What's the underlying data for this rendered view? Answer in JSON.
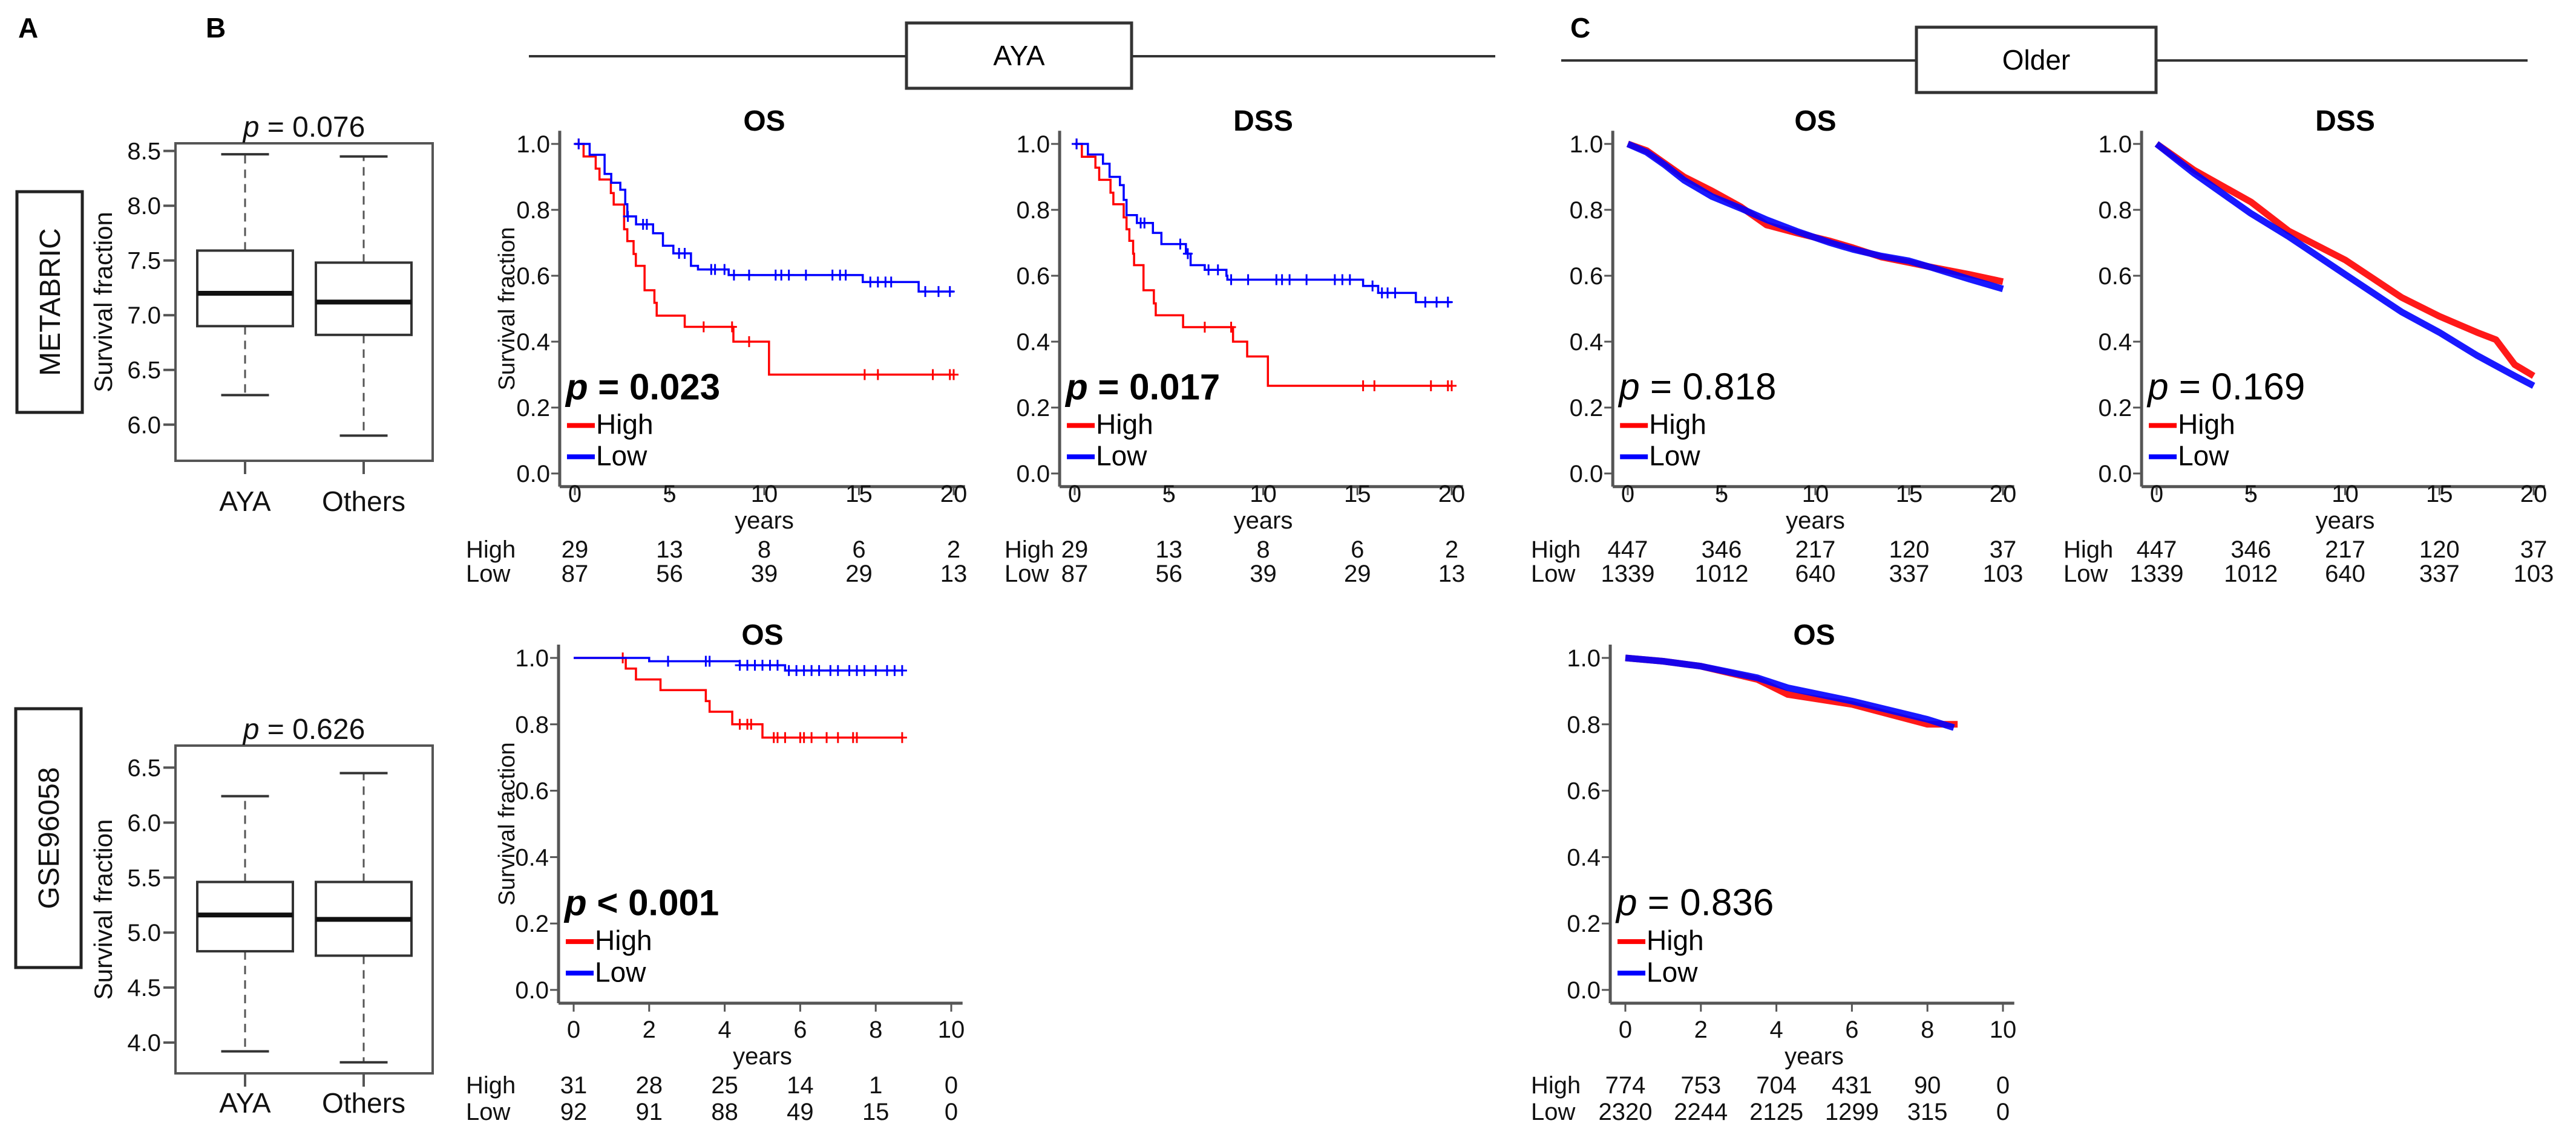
{
  "panel_labels": {
    "a": "A",
    "b": "B",
    "c": "C"
  },
  "groups": {
    "aya": "AYA",
    "older": "Older"
  },
  "colors": {
    "high": "#ff0000",
    "low": "#0000ff",
    "axis": "#555555",
    "box": "#333333"
  },
  "chart_data": [
    {
      "type": "boxplot",
      "dataset": "METABRIC",
      "ylabel": "Survival fraction",
      "p_symbol": "p",
      "p_rest": " = 0.076",
      "ylim": [
        5.67,
        8.57
      ],
      "yticks": [
        "6.0",
        "6.5",
        "7.0",
        "7.5",
        "8.0",
        "8.5"
      ],
      "categories": [
        "AYA",
        "Others"
      ],
      "boxes": [
        {
          "whisker_low": 6.27,
          "q1": 6.9,
          "median": 7.2,
          "q3": 7.59,
          "whisker_high": 8.47
        },
        {
          "whisker_low": 5.9,
          "q1": 6.82,
          "median": 7.12,
          "q3": 7.48,
          "whisker_high": 8.45
        }
      ]
    },
    {
      "type": "boxplot",
      "dataset": "GSE96058",
      "ylabel": "Survival fraction",
      "p_symbol": "p",
      "p_rest": " = 0.626",
      "ylim": [
        3.72,
        6.7
      ],
      "yticks": [
        "4.0",
        "4.5",
        "5.0",
        "5.5",
        "6.0",
        "6.5"
      ],
      "categories": [
        "AYA",
        "Others"
      ],
      "boxes": [
        {
          "whisker_low": 3.92,
          "q1": 4.83,
          "median": 5.16,
          "q3": 5.46,
          "whisker_high": 6.24
        },
        {
          "whisker_low": 3.82,
          "q1": 4.79,
          "median": 5.12,
          "q3": 5.46,
          "whisker_high": 6.45
        }
      ]
    },
    {
      "type": "line",
      "group": "AYA",
      "title": "OS",
      "ylabel": "Survival fraction",
      "xlabel": "years",
      "xlim": [
        0,
        20
      ],
      "xticks": [
        "0",
        "5",
        "10",
        "15",
        "20"
      ],
      "ylim": [
        0,
        1
      ],
      "yticks": [
        "0.0",
        "0.2",
        "0.4",
        "0.6",
        "0.8",
        "1.0"
      ],
      "p_symbol": "p",
      "p_rest": " = 0.023",
      "p_bold": true,
      "series": [
        {
          "name": "High",
          "end": 20,
          "steps": [
            [
              0.46,
              0.962
            ],
            [
              1.1,
              0.925
            ],
            [
              1.3,
              0.892
            ],
            [
              1.9,
              0.851
            ],
            [
              2.05,
              0.816
            ],
            [
              2.6,
              0.741
            ],
            [
              2.77,
              0.705
            ],
            [
              3.1,
              0.666
            ],
            [
              3.22,
              0.63
            ],
            [
              3.68,
              0.556
            ],
            [
              4.2,
              0.518
            ],
            [
              4.32,
              0.479
            ],
            [
              5.8,
              0.445
            ],
            [
              8.37,
              0.4
            ],
            [
              10.25,
              0.3
            ]
          ],
          "censor": [
            0.2,
            6.8,
            8.3,
            9.2,
            15.3,
            16,
            18.9,
            19.8,
            20
          ]
        },
        {
          "name": "Low",
          "end": 20,
          "steps": [
            [
              0.78,
              0.967
            ],
            [
              1.57,
              0.909
            ],
            [
              1.92,
              0.882
            ],
            [
              2.4,
              0.861
            ],
            [
              2.66,
              0.817
            ],
            [
              2.77,
              0.78
            ],
            [
              3.23,
              0.756
            ],
            [
              4.13,
              0.729
            ],
            [
              4.65,
              0.691
            ],
            [
              5.2,
              0.668
            ],
            [
              6.13,
              0.63
            ],
            [
              6.5,
              0.619
            ],
            [
              8.12,
              0.602
            ],
            [
              15.2,
              0.581
            ],
            [
              18.15,
              0.552
            ]
          ],
          "censor": [
            0.2,
            2.8,
            3.6,
            3.8,
            5.5,
            5.8,
            7.2,
            7.4,
            7.9,
            8.4,
            9.2,
            10.6,
            10.9,
            11.3,
            12.2,
            13.6,
            14.0,
            14.3,
            15.6,
            16.0,
            16.4,
            16.7,
            18.5,
            19.2,
            19.8
          ]
        }
      ],
      "risk_table": [
        {
          "label": "High",
          "values": [
            "29",
            "13",
            "8",
            "6",
            "2"
          ]
        },
        {
          "label": "Low",
          "values": [
            "87",
            "56",
            "39",
            "29",
            "13"
          ]
        }
      ]
    },
    {
      "type": "line",
      "group": "AYA",
      "title": "DSS",
      "ylabel": "",
      "xlabel": "years",
      "xlim": [
        0,
        20
      ],
      "xticks": [
        "0",
        "5",
        "10",
        "15",
        "20"
      ],
      "ylim": [
        0,
        1
      ],
      "yticks": [
        "0.0",
        "0.2",
        "0.4",
        "0.6",
        "0.8",
        "1.0"
      ],
      "p_symbol": "p",
      "p_rest": " = 0.017",
      "p_bold": true,
      "series": [
        {
          "name": "High",
          "end": 20,
          "steps": [
            [
              0.38,
              0.961
            ],
            [
              1.1,
              0.928
            ],
            [
              1.3,
              0.891
            ],
            [
              1.9,
              0.852
            ],
            [
              2.05,
              0.817
            ],
            [
              2.6,
              0.777
            ],
            [
              2.75,
              0.741
            ],
            [
              2.9,
              0.706
            ],
            [
              3.1,
              0.667
            ],
            [
              3.15,
              0.632
            ],
            [
              3.65,
              0.556
            ],
            [
              4.2,
              0.516
            ],
            [
              4.3,
              0.48
            ],
            [
              5.75,
              0.444
            ],
            [
              8.4,
              0.4
            ],
            [
              9.15,
              0.355
            ],
            [
              10.25,
              0.266
            ]
          ],
          "censor": [
            0.1,
            6.9,
            8.3,
            15.3,
            15.9,
            18.9,
            19.8,
            20
          ]
        },
        {
          "name": "Low",
          "end": 20,
          "steps": [
            [
              0.7,
              0.968
            ],
            [
              1.5,
              0.94
            ],
            [
              1.85,
              0.9
            ],
            [
              2.4,
              0.875
            ],
            [
              2.6,
              0.83
            ],
            [
              2.75,
              0.784
            ],
            [
              3.3,
              0.76
            ],
            [
              4.15,
              0.73
            ],
            [
              4.6,
              0.696
            ],
            [
              5.9,
              0.667
            ],
            [
              6.15,
              0.632
            ],
            [
              6.9,
              0.618
            ],
            [
              8.05,
              0.6
            ],
            [
              8.1,
              0.588
            ],
            [
              15.3,
              0.569
            ],
            [
              16.1,
              0.548
            ],
            [
              18.1,
              0.52
            ]
          ],
          "censor": [
            0.1,
            3.5,
            3.7,
            5.6,
            6.0,
            7.1,
            7.6,
            8.3,
            9.2,
            10.7,
            11.0,
            11.4,
            12.3,
            13.8,
            14.2,
            14.6,
            15.8,
            16.3,
            16.6,
            17.0,
            18.6,
            19.2,
            19.8
          ]
        }
      ],
      "risk_table": [
        {
          "label": "High",
          "values": [
            "29",
            "13",
            "8",
            "6",
            "2"
          ]
        },
        {
          "label": "Low",
          "values": [
            "87",
            "56",
            "39",
            "29",
            "13"
          ]
        }
      ]
    },
    {
      "type": "line",
      "group": "Older",
      "title": "OS",
      "ylabel": "",
      "xlabel": "years",
      "xlim": [
        0,
        20
      ],
      "xticks": [
        "0",
        "5",
        "10",
        "15",
        "20"
      ],
      "ylim": [
        0,
        1
      ],
      "yticks": [
        "0.0",
        "0.2",
        "0.4",
        "0.6",
        "0.8",
        "1.0"
      ],
      "p_symbol": "p",
      "p_rest": " = 0.818",
      "p_bold": false,
      "series": [
        {
          "name": "High",
          "points": [
            [
              0,
              1
            ],
            [
              1,
              0.98
            ],
            [
              2,
              0.94
            ],
            [
              3,
              0.9
            ],
            [
              4.5,
              0.857
            ],
            [
              6,
              0.81
            ],
            [
              7.4,
              0.754
            ],
            [
              9,
              0.73
            ],
            [
              10.8,
              0.705
            ],
            [
              12,
              0.685
            ],
            [
              13.5,
              0.657
            ],
            [
              15,
              0.64
            ],
            [
              16.2,
              0.626
            ],
            [
              18.2,
              0.604
            ],
            [
              20,
              0.582
            ]
          ]
        },
        {
          "name": "Low",
          "points": [
            [
              0,
              1
            ],
            [
              1,
              0.975
            ],
            [
              2,
              0.935
            ],
            [
              3,
              0.89
            ],
            [
              4.5,
              0.84
            ],
            [
              6,
              0.805
            ],
            [
              7.4,
              0.77
            ],
            [
              9,
              0.735
            ],
            [
              10.8,
              0.7
            ],
            [
              12,
              0.68
            ],
            [
              13.5,
              0.66
            ],
            [
              15,
              0.645
            ],
            [
              16.2,
              0.625
            ],
            [
              18.2,
              0.59
            ],
            [
              20,
              0.56
            ]
          ]
        }
      ],
      "risk_table": [
        {
          "label": "High",
          "values": [
            "447",
            "346",
            "217",
            "120",
            "37"
          ]
        },
        {
          "label": "Low",
          "values": [
            "1339",
            "1012",
            "640",
            "337",
            "103"
          ]
        }
      ]
    },
    {
      "type": "line",
      "group": "Older",
      "title": "DSS",
      "ylabel": "",
      "xlabel": "years",
      "xlim": [
        0,
        20
      ],
      "xticks": [
        "0",
        "5",
        "10",
        "15",
        "20"
      ],
      "ylim": [
        0,
        1
      ],
      "yticks": [
        "0.0",
        "0.2",
        "0.4",
        "0.6",
        "0.8",
        "1.0"
      ],
      "p_symbol": "p",
      "p_rest": " = 0.169",
      "p_bold": false,
      "series": [
        {
          "name": "High",
          "points": [
            [
              0,
              1
            ],
            [
              2,
              0.92
            ],
            [
              5,
              0.824
            ],
            [
              7,
              0.736
            ],
            [
              10,
              0.648
            ],
            [
              13,
              0.534
            ],
            [
              15,
              0.477
            ],
            [
              17,
              0.428
            ],
            [
              18,
              0.406
            ],
            [
              19,
              0.33
            ],
            [
              20,
              0.296
            ]
          ]
        },
        {
          "name": "Low",
          "points": [
            [
              0,
              1
            ],
            [
              2,
              0.91
            ],
            [
              5,
              0.789
            ],
            [
              7,
              0.719
            ],
            [
              10,
              0.604
            ],
            [
              13,
              0.49
            ],
            [
              15,
              0.428
            ],
            [
              17,
              0.358
            ],
            [
              19,
              0.296
            ],
            [
              20,
              0.266
            ]
          ]
        }
      ],
      "risk_table": [
        {
          "label": "High",
          "values": [
            "447",
            "346",
            "217",
            "120",
            "37"
          ]
        },
        {
          "label": "Low",
          "values": [
            "1339",
            "1012",
            "640",
            "337",
            "103"
          ]
        }
      ]
    },
    {
      "type": "line",
      "group": "AYA",
      "title": "OS",
      "ylabel": "Survival fraction",
      "xlabel": "years",
      "xlim": [
        0,
        10
      ],
      "xticks": [
        "0",
        "2",
        "4",
        "6",
        "8",
        "10"
      ],
      "ylim": [
        0,
        1
      ],
      "yticks": [
        "0.0",
        "0.2",
        "0.4",
        "0.6",
        "0.8",
        "1.0"
      ],
      "p_symbol": "p",
      "p_rest": " < 0.001",
      "p_bold": true,
      "series": [
        {
          "name": "High",
          "end": 8.7,
          "steps": [
            [
              1.38,
              0.968
            ],
            [
              1.65,
              0.935
            ],
            [
              2.3,
              0.903
            ],
            [
              3.5,
              0.87
            ],
            [
              3.6,
              0.838
            ],
            [
              4.2,
              0.8
            ],
            [
              5.0,
              0.76
            ]
          ],
          "censor": [
            1.3,
            4.4,
            4.6,
            4.7,
            5.3,
            5.4,
            5.6,
            6.0,
            6.1,
            6.3,
            6.7,
            7.0,
            7.4,
            7.5,
            8.7
          ]
        },
        {
          "name": "Low",
          "end": 8.7,
          "steps": [
            [
              2.0,
              0.99
            ],
            [
              4.4,
              0.978
            ],
            [
              5.6,
              0.962
            ]
          ],
          "censor": [
            2.5,
            3.5,
            3.6,
            4.4,
            4.6,
            4.8,
            5.0,
            5.2,
            5.4,
            5.7,
            5.9,
            6.1,
            6.3,
            6.5,
            6.8,
            7.0,
            7.3,
            7.5,
            7.7,
            8.0,
            8.3,
            8.5,
            8.7
          ]
        }
      ],
      "risk_table": [
        {
          "label": "High",
          "values": [
            "31",
            "28",
            "25",
            "14",
            "1",
            "0"
          ]
        },
        {
          "label": "Low",
          "values": [
            "92",
            "91",
            "88",
            "49",
            "15",
            "0"
          ]
        }
      ]
    },
    {
      "type": "line",
      "group": "Older",
      "title": "OS",
      "ylabel": "",
      "xlabel": "years",
      "xlim": [
        0,
        10
      ],
      "xticks": [
        "0",
        "2",
        "4",
        "6",
        "8",
        "10"
      ],
      "ylim": [
        0,
        1
      ],
      "yticks": [
        "0.0",
        "0.2",
        "0.4",
        "0.6",
        "0.8",
        "1.0"
      ],
      "p_symbol": "p",
      "p_rest": " = 0.836",
      "p_bold": false,
      "series": [
        {
          "name": "High",
          "points": [
            [
              0,
              1
            ],
            [
              1,
              0.99
            ],
            [
              2,
              0.975
            ],
            [
              3.5,
              0.935
            ],
            [
              4.3,
              0.89
            ],
            [
              6,
              0.86
            ],
            [
              8,
              0.8
            ],
            [
              8.8,
              0.8
            ]
          ]
        },
        {
          "name": "Low",
          "points": [
            [
              0,
              1
            ],
            [
              1,
              0.99
            ],
            [
              2,
              0.975
            ],
            [
              3.5,
              0.94
            ],
            [
              4.3,
              0.91
            ],
            [
              6,
              0.87
            ],
            [
              8,
              0.815
            ],
            [
              8.7,
              0.79
            ]
          ]
        }
      ],
      "risk_table": [
        {
          "label": "High",
          "values": [
            "774",
            "753",
            "704",
            "431",
            "90",
            "0"
          ]
        },
        {
          "label": "Low",
          "values": [
            "2320",
            "2244",
            "2125",
            "1299",
            "315",
            "0"
          ]
        }
      ]
    }
  ]
}
